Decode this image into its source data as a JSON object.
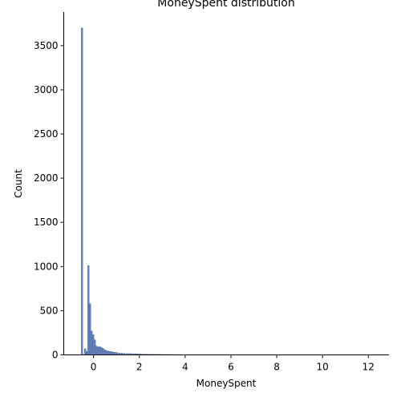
{
  "chart_data": {
    "type": "bar",
    "title": "MoneySpent distribution",
    "xlabel": "MoneySpent",
    "ylabel": "Count",
    "xlim": [
      -1.3,
      12.9
    ],
    "ylim": [
      0,
      3880
    ],
    "xticks": [
      0,
      2,
      4,
      6,
      8,
      10,
      12
    ],
    "xtick_labels": [
      "0",
      "2",
      "4",
      "6",
      "8",
      "10",
      "12"
    ],
    "yticks": [
      0,
      500,
      1000,
      1500,
      2000,
      2500,
      3000,
      3500
    ],
    "ytick_labels": [
      "0",
      "500",
      "1000",
      "1500",
      "2000",
      "2500",
      "3000",
      "3500"
    ],
    "grid": false,
    "bar_color": "#4c72b0",
    "bin_width": 0.07,
    "x": [
      -0.54,
      -0.47,
      -0.4,
      -0.33,
      -0.26,
      -0.19,
      -0.12,
      -0.05,
      0.02,
      0.09,
      0.16,
      0.23,
      0.3,
      0.37,
      0.44,
      0.51,
      0.58,
      0.65,
      0.72,
      0.79,
      0.86,
      0.93,
      1.0,
      1.1,
      1.2,
      1.3,
      1.4,
      1.5,
      1.6,
      1.7,
      1.8,
      1.9,
      2.0,
      2.1,
      2.2,
      2.3,
      2.4,
      2.5,
      2.6,
      2.7,
      2.8,
      2.9,
      3.0,
      3.1,
      3.2,
      3.3,
      3.4,
      3.5,
      3.6,
      3.7,
      3.8,
      3.9,
      4.8,
      5.0,
      5.3,
      5.5,
      5.7,
      6.0
    ],
    "values": [
      3700,
      5,
      70,
      40,
      1010,
      580,
      270,
      230,
      170,
      100,
      90,
      95,
      85,
      75,
      60,
      50,
      45,
      40,
      38,
      35,
      30,
      28,
      25,
      22,
      20,
      18,
      17,
      16,
      15,
      14,
      13,
      12,
      11,
      10,
      9,
      9,
      8,
      8,
      7,
      7,
      6,
      6,
      5,
      5,
      5,
      4,
      4,
      4,
      3,
      3,
      3,
      3,
      2,
      2,
      2,
      1,
      1,
      1
    ]
  }
}
